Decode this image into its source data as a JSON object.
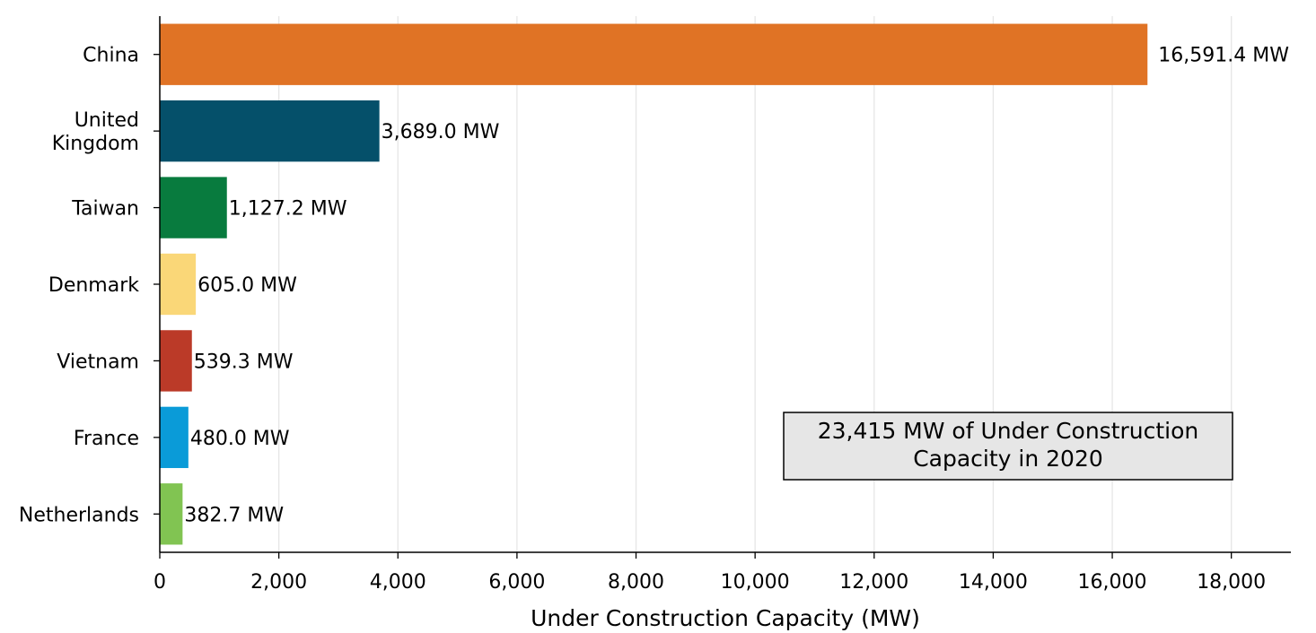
{
  "chart_data": {
    "type": "bar",
    "orientation": "horizontal",
    "categories": [
      "China",
      "United Kingdom",
      "Taiwan",
      "Denmark",
      "Vietnam",
      "France",
      "Netherlands"
    ],
    "category_label_lines": [
      [
        "China"
      ],
      [
        "United",
        "Kingdom"
      ],
      [
        "Taiwan"
      ],
      [
        "Denmark"
      ],
      [
        "Vietnam"
      ],
      [
        "France"
      ],
      [
        "Netherlands"
      ]
    ],
    "values": [
      16591.4,
      3689.0,
      1127.2,
      605.0,
      539.3,
      480.0,
      382.7
    ],
    "value_labels": [
      "16,591.4 MW",
      "3,689.0 MW",
      "1,127.2 MW",
      "605.0 MW",
      "539.3 MW",
      "480.0 MW",
      "382.7 MW"
    ],
    "colors": [
      "#E07325",
      "#05506A",
      "#087B3E",
      "#FAD778",
      "#BB3A28",
      "#0A9BD8",
      "#81C452"
    ],
    "xlabel": "Under Construction Capacity (MW)",
    "ylabel": "",
    "title": "",
    "xlim": [
      0,
      19000
    ],
    "xticks": [
      0,
      2000,
      4000,
      6000,
      8000,
      10000,
      12000,
      14000,
      16000,
      18000
    ],
    "xtick_labels": [
      "0",
      "2,000",
      "4,000",
      "6,000",
      "8,000",
      "10,000",
      "12,000",
      "14,000",
      "16,000",
      "18,000"
    ],
    "grid": "vertical",
    "grid_color": "#e6e6e6",
    "annotation": {
      "lines": [
        "23,415 MW of Under Construction",
        "Capacity in 2020"
      ],
      "placement": "lower-right",
      "background": "#e6e6e6"
    }
  }
}
